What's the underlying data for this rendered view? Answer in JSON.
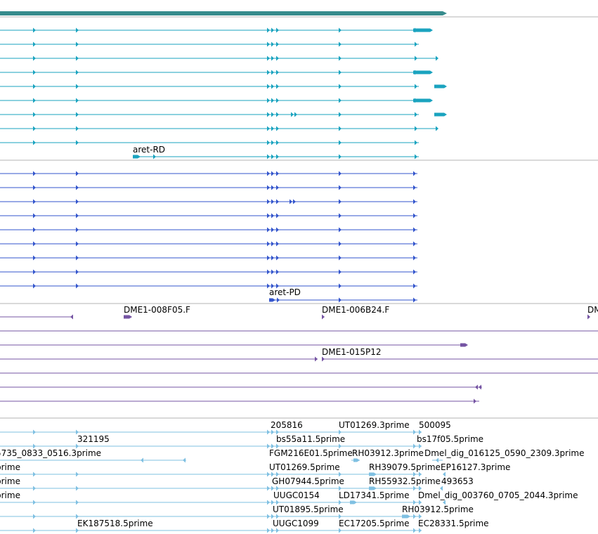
{
  "colors": {
    "gene_bar": "#368b8c",
    "transcript_track1": "#1aa3bf",
    "transcript_track2": "#3355cc",
    "est_track3": "#7554a3",
    "est_track4": "#7fc0e2",
    "separator": "#b3b3b3",
    "background": "#ffffff"
  },
  "tracks": {
    "gene": {
      "name": "gene"
    },
    "track1": {
      "name": "transcripts-1",
      "label": "aret-RD"
    },
    "track2": {
      "name": "transcripts-2",
      "label": "aret-PD"
    },
    "track3": {
      "name": "est-clones",
      "labels": [
        "DME1-008F05.F",
        "DME1-006B24.F",
        "DM",
        "DME1-015P12"
      ]
    },
    "track4": {
      "name": "est-reads",
      "labels": [
        "205816",
        "UT01269.3prime",
        "500095",
        "321195",
        "bs55a11.5prime",
        "bs17f05.5prime",
        "5735_0833_0516.3prime",
        "FGM216E01.5prime",
        "RH03912.3prime",
        "Dmel_dig_016125_0590_2309.3prime",
        "prime",
        "UT01269.5prime",
        "RH39079.5prime",
        "EP16127.3prime",
        "prime",
        "GH07944.5prime",
        "RH55932.5prime",
        "493653",
        "prime",
        "UUGC0154",
        "LD17341.5prime",
        "Dmel_dig_003760_0705_2044.3prime",
        "UT01895.5prime",
        "RH03912.5prime",
        "EK187518.5prime",
        "UUGC1099",
        "EC17205.5prime",
        "EC28331.5prime"
      ]
    }
  }
}
